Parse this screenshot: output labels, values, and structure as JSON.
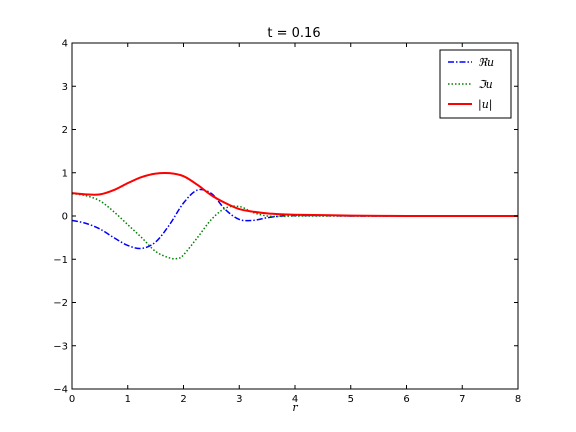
{
  "chart_data": {
    "type": "line",
    "title": "t = 0.16",
    "xlabel": "r",
    "ylabel": "",
    "xlim": [
      0,
      8
    ],
    "ylim": [
      -4,
      4
    ],
    "xticks": [
      "0",
      "1",
      "2",
      "3",
      "4",
      "5",
      "6",
      "7",
      "8"
    ],
    "yticks": [
      "−4",
      "−3",
      "−2",
      "−1",
      "0",
      "1",
      "2",
      "3",
      "4"
    ],
    "grid": false,
    "legend_position": "top-right",
    "series": [
      {
        "name": "ℜu",
        "color": "#0000ff",
        "style": "dashdot",
        "x": [
          0,
          0.25,
          0.5,
          0.75,
          1.0,
          1.25,
          1.5,
          1.75,
          2.0,
          2.25,
          2.5,
          2.75,
          3.0,
          3.25,
          3.5,
          3.75,
          4.0,
          4.5,
          5.0,
          6.0,
          7.0,
          8.0
        ],
        "y": [
          -0.1,
          -0.17,
          -0.3,
          -0.5,
          -0.68,
          -0.75,
          -0.6,
          -0.2,
          0.3,
          0.6,
          0.52,
          0.15,
          -0.08,
          -0.1,
          -0.04,
          0.0,
          0.01,
          0.01,
          0.0,
          0.0,
          0.0,
          0.0
        ]
      },
      {
        "name": "ℑu",
        "color": "#008000",
        "style": "dotted",
        "x": [
          0,
          0.25,
          0.5,
          0.75,
          1.0,
          1.25,
          1.5,
          1.75,
          1.9,
          2.0,
          2.25,
          2.5,
          2.75,
          3.0,
          3.25,
          3.5,
          3.75,
          4.0,
          4.5,
          5.0,
          6.0,
          7.0,
          8.0
        ],
        "y": [
          0.52,
          0.47,
          0.35,
          0.1,
          -0.2,
          -0.5,
          -0.82,
          -0.97,
          -0.98,
          -0.9,
          -0.5,
          -0.08,
          0.18,
          0.22,
          0.08,
          0.0,
          -0.01,
          0.0,
          0.0,
          0.0,
          0.0,
          0.0,
          0.0
        ]
      },
      {
        "name": "|u|",
        "color": "#ff0000",
        "style": "solid",
        "x": [
          0,
          0.25,
          0.5,
          0.75,
          1.0,
          1.25,
          1.5,
          1.75,
          2.0,
          2.25,
          2.5,
          2.75,
          3.0,
          3.25,
          3.5,
          3.75,
          4.0,
          4.5,
          5.0,
          6.0,
          7.0,
          8.0
        ],
        "y": [
          0.53,
          0.5,
          0.5,
          0.6,
          0.76,
          0.9,
          0.98,
          0.99,
          0.92,
          0.72,
          0.48,
          0.3,
          0.16,
          0.1,
          0.06,
          0.04,
          0.03,
          0.02,
          0.01,
          0.0,
          0.0,
          0.0
        ]
      }
    ]
  }
}
